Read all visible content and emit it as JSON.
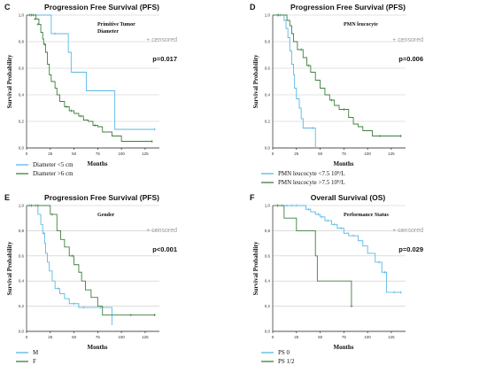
{
  "colors": {
    "series_blue": "#5bb8e6",
    "series_green": "#3f7f3f",
    "censored_gray": "#999999",
    "grid": "#c8c8c8"
  },
  "chart_data": [
    {
      "panel": "C",
      "type": "line",
      "title": "Progression Free Survival (PFS)",
      "variable_label": [
        "Primitive Tumor",
        "Diameter"
      ],
      "censored_note": "+ censored",
      "p_value": "p=0.017",
      "xlabel": "Months",
      "ylabel": "Survival Probability",
      "xlim": [
        0,
        140
      ],
      "ylim": [
        0,
        1.0
      ],
      "xticks": [
        "0",
        "25",
        "50",
        "75",
        "100",
        "125"
      ],
      "xtick_values": [
        0,
        25,
        50,
        75,
        100,
        125
      ],
      "yticks": [
        "0,0",
        "0,2",
        "0,4",
        "0,6",
        "0,8",
        "1,0"
      ],
      "ytick_values": [
        0,
        0.2,
        0.4,
        0.6,
        0.8,
        1.0
      ],
      "grid": true,
      "series": [
        {
          "name": "Diameter <5 cm",
          "color": "#5bb8e6",
          "points": [
            [
              0,
              1.0
            ],
            [
              5,
              1.0
            ],
            [
              10,
              1.0
            ],
            [
              20,
              1.0
            ],
            [
              25,
              1.0
            ],
            [
              26,
              0.86
            ],
            [
              40,
              0.86
            ],
            [
              44,
              0.72
            ],
            [
              47,
              0.57
            ],
            [
              55,
              0.57
            ],
            [
              63,
              0.43
            ],
            [
              82,
              0.43
            ],
            [
              93,
              0.14
            ],
            [
              135,
              0.14
            ]
          ],
          "censors": [
            [
              5,
              1.0
            ],
            [
              10,
              1.0
            ],
            [
              30,
              0.86
            ],
            [
              135,
              0.14
            ]
          ]
        },
        {
          "name": "Diameter >6 cm",
          "color": "#3f7f3f",
          "points": [
            [
              0,
              1.0
            ],
            [
              6,
              1.0
            ],
            [
              10,
              0.97
            ],
            [
              13,
              0.93
            ],
            [
              15,
              0.87
            ],
            [
              17,
              0.82
            ],
            [
              18,
              0.78
            ],
            [
              20,
              0.72
            ],
            [
              22,
              0.63
            ],
            [
              24,
              0.55
            ],
            [
              26,
              0.5
            ],
            [
              30,
              0.45
            ],
            [
              32,
              0.4
            ],
            [
              35,
              0.35
            ],
            [
              40,
              0.31
            ],
            [
              45,
              0.28
            ],
            [
              50,
              0.26
            ],
            [
              55,
              0.24
            ],
            [
              60,
              0.21
            ],
            [
              65,
              0.2
            ],
            [
              70,
              0.17
            ],
            [
              75,
              0.16
            ],
            [
              80,
              0.12
            ],
            [
              90,
              0.09
            ],
            [
              100,
              0.05
            ],
            [
              132,
              0.05
            ]
          ],
          "censors": [
            [
              3,
              1.0
            ],
            [
              5,
              1.0
            ],
            [
              7,
              1.0
            ],
            [
              9,
              0.97
            ],
            [
              12,
              0.93
            ],
            [
              19,
              0.78
            ],
            [
              42,
              0.31
            ],
            [
              47,
              0.28
            ],
            [
              57,
              0.24
            ],
            [
              72,
              0.17
            ],
            [
              132,
              0.05
            ]
          ]
        }
      ]
    },
    {
      "panel": "D",
      "type": "line",
      "title": "Progression Free Survival (PFS)",
      "variable_label": [
        "PMN leucocyte"
      ],
      "censored_note": "+ censored",
      "p_value": "p=0.006",
      "xlabel": "Months",
      "ylabel": "Survival Probability",
      "xlim": [
        0,
        140
      ],
      "ylim": [
        0,
        1.0
      ],
      "xticks": [
        "0",
        "25",
        "50",
        "75",
        "100",
        "125"
      ],
      "xtick_values": [
        0,
        25,
        50,
        75,
        100,
        125
      ],
      "yticks": [
        "0,0",
        "0,2",
        "0,4",
        "0,6",
        "0,8",
        "1,0"
      ],
      "ytick_values": [
        0,
        0.2,
        0.4,
        0.6,
        0.8,
        1.0
      ],
      "grid": true,
      "series": [
        {
          "name": "PMN leucocyte <7.5 10⁹/L",
          "color": "#5bb8e6",
          "points": [
            [
              0,
              1.0
            ],
            [
              10,
              1.0
            ],
            [
              12,
              0.96
            ],
            [
              14,
              0.9
            ],
            [
              16,
              0.83
            ],
            [
              18,
              0.73
            ],
            [
              20,
              0.63
            ],
            [
              22,
              0.55
            ],
            [
              23,
              0.45
            ],
            [
              25,
              0.37
            ],
            [
              28,
              0.3
            ],
            [
              30,
              0.22
            ],
            [
              32,
              0.15
            ],
            [
              40,
              0.15
            ],
            [
              45,
              0.0
            ]
          ],
          "censors": [
            [
              5,
              1.0
            ],
            [
              8,
              1.0
            ],
            [
              42,
              0.15
            ]
          ]
        },
        {
          "name": "PMN leucocyte >7.5 10⁹/L",
          "color": "#3f7f3f",
          "points": [
            [
              0,
              1.0
            ],
            [
              10,
              1.0
            ],
            [
              15,
              0.96
            ],
            [
              18,
              0.92
            ],
            [
              20,
              0.86
            ],
            [
              22,
              0.8
            ],
            [
              26,
              0.74
            ],
            [
              32,
              0.68
            ],
            [
              36,
              0.62
            ],
            [
              40,
              0.57
            ],
            [
              45,
              0.51
            ],
            [
              50,
              0.45
            ],
            [
              55,
              0.4
            ],
            [
              60,
              0.36
            ],
            [
              65,
              0.32
            ],
            [
              70,
              0.29
            ],
            [
              80,
              0.23
            ],
            [
              85,
              0.18
            ],
            [
              90,
              0.16
            ],
            [
              95,
              0.13
            ],
            [
              105,
              0.09
            ],
            [
              135,
              0.09
            ]
          ],
          "censors": [
            [
              6,
              1.0
            ],
            [
              30,
              0.74
            ],
            [
              38,
              0.62
            ],
            [
              62,
              0.36
            ],
            [
              75,
              0.29
            ],
            [
              113,
              0.09
            ],
            [
              135,
              0.09
            ]
          ]
        }
      ]
    },
    {
      "panel": "E",
      "type": "line",
      "title": "Progression Free Survival (PFS)",
      "variable_label": [
        "Gender"
      ],
      "censored_note": "+ censored",
      "p_value": "p<0.001",
      "xlabel": "Months",
      "ylabel": "Survival Probability",
      "xlim": [
        0,
        140
      ],
      "ylim": [
        0,
        1.0
      ],
      "xticks": [
        "0",
        "25",
        "50",
        "75",
        "100",
        "125"
      ],
      "xtick_values": [
        0,
        25,
        50,
        75,
        100,
        125
      ],
      "yticks": [
        "0,0",
        "0,2",
        "0,4",
        "0,6",
        "0,8",
        "1,0"
      ],
      "ytick_values": [
        0,
        0.2,
        0.4,
        0.6,
        0.8,
        1.0
      ],
      "grid": true,
      "series": [
        {
          "name": "M",
          "color": "#5bb8e6",
          "points": [
            [
              0,
              1.0
            ],
            [
              8,
              1.0
            ],
            [
              12,
              0.93
            ],
            [
              15,
              0.85
            ],
            [
              17,
              0.78
            ],
            [
              19,
              0.7
            ],
            [
              20,
              0.62
            ],
            [
              22,
              0.55
            ],
            [
              24,
              0.48
            ],
            [
              27,
              0.4
            ],
            [
              30,
              0.34
            ],
            [
              35,
              0.3
            ],
            [
              40,
              0.26
            ],
            [
              45,
              0.22
            ],
            [
              55,
              0.19
            ],
            [
              70,
              0.19
            ],
            [
              85,
              0.19
            ],
            [
              90,
              0.05
            ]
          ],
          "censors": [
            [
              3,
              1.0
            ],
            [
              10,
              1.0
            ],
            [
              18,
              0.78
            ],
            [
              33,
              0.34
            ],
            [
              50,
              0.22
            ],
            [
              60,
              0.19
            ],
            [
              78,
              0.19
            ]
          ]
        },
        {
          "name": "F",
          "color": "#3f7f3f",
          "points": [
            [
              0,
              1.0
            ],
            [
              20,
              1.0
            ],
            [
              25,
              0.93
            ],
            [
              32,
              0.8
            ],
            [
              36,
              0.73
            ],
            [
              40,
              0.67
            ],
            [
              45,
              0.6
            ],
            [
              50,
              0.53
            ],
            [
              55,
              0.47
            ],
            [
              58,
              0.4
            ],
            [
              62,
              0.33
            ],
            [
              68,
              0.27
            ],
            [
              75,
              0.2
            ],
            [
              80,
              0.13
            ],
            [
              100,
              0.13
            ],
            [
              135,
              0.13
            ]
          ],
          "censors": [
            [
              5,
              1.0
            ],
            [
              12,
              1.0
            ],
            [
              27,
              0.93
            ],
            [
              48,
              0.6
            ],
            [
              110,
              0.13
            ],
            [
              135,
              0.13
            ]
          ]
        }
      ]
    },
    {
      "panel": "F",
      "type": "line",
      "title": "Overall Survival (OS)",
      "variable_label": [
        "Performance Status"
      ],
      "censored_note": "+ censored",
      "p_value": "p=0.029",
      "xlabel": "Months",
      "ylabel": "Survival Probability",
      "xlim": [
        0,
        140
      ],
      "ylim": [
        0,
        1.0
      ],
      "xticks": [
        "0",
        "25",
        "50",
        "75",
        "100",
        "125"
      ],
      "xtick_values": [
        0,
        25,
        50,
        75,
        100,
        125
      ],
      "yticks": [
        "0,0",
        "0,2",
        "0,4",
        "0,6",
        "0,8",
        "1,0"
      ],
      "ytick_values": [
        0,
        0.2,
        0.4,
        0.6,
        0.8,
        1.0
      ],
      "grid": true,
      "series": [
        {
          "name": "PS 0",
          "color": "#5bb8e6",
          "points": [
            [
              0,
              1.0
            ],
            [
              30,
              1.0
            ],
            [
              35,
              0.97
            ],
            [
              40,
              0.95
            ],
            [
              45,
              0.93
            ],
            [
              50,
              0.91
            ],
            [
              55,
              0.88
            ],
            [
              62,
              0.85
            ],
            [
              68,
              0.82
            ],
            [
              75,
              0.78
            ],
            [
              80,
              0.76
            ],
            [
              90,
              0.72
            ],
            [
              95,
              0.68
            ],
            [
              100,
              0.62
            ],
            [
              108,
              0.55
            ],
            [
              115,
              0.47
            ],
            [
              120,
              0.31
            ],
            [
              135,
              0.31
            ]
          ],
          "censors": [
            [
              5,
              1.0
            ],
            [
              10,
              1.0
            ],
            [
              15,
              1.0
            ],
            [
              20,
              1.0
            ],
            [
              25,
              1.0
            ],
            [
              38,
              0.97
            ],
            [
              48,
              0.93
            ],
            [
              52,
              0.91
            ],
            [
              58,
              0.88
            ],
            [
              65,
              0.85
            ],
            [
              72,
              0.82
            ],
            [
              85,
              0.76
            ],
            [
              112,
              0.55
            ],
            [
              118,
              0.47
            ],
            [
              128,
              0.31
            ],
            [
              135,
              0.31
            ]
          ]
        },
        {
          "name": "PS 1/2",
          "color": "#3f7f3f",
          "points": [
            [
              0,
              1.0
            ],
            [
              10,
              1.0
            ],
            [
              12,
              0.9
            ],
            [
              20,
              0.9
            ],
            [
              25,
              0.8
            ],
            [
              40,
              0.8
            ],
            [
              45,
              0.6
            ],
            [
              47,
              0.4
            ],
            [
              82,
              0.4
            ],
            [
              83,
              0.2
            ]
          ],
          "censors": [
            [
              5,
              1.0
            ],
            [
              83,
              0.2
            ]
          ]
        }
      ]
    }
  ]
}
